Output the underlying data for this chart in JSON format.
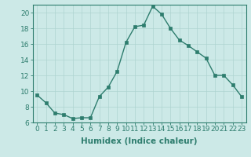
{
  "x": [
    0,
    1,
    2,
    3,
    4,
    5,
    6,
    7,
    8,
    9,
    10,
    11,
    12,
    13,
    14,
    15,
    16,
    17,
    18,
    19,
    20,
    21,
    22,
    23
  ],
  "y": [
    9.5,
    8.5,
    7.2,
    7.0,
    6.5,
    6.6,
    6.6,
    9.3,
    10.5,
    12.5,
    16.2,
    18.2,
    18.4,
    20.8,
    19.8,
    18.0,
    16.5,
    15.8,
    15.0,
    14.2,
    12.0,
    12.0,
    10.8,
    9.3
  ],
  "line_color": "#2e7d6e",
  "marker": "s",
  "marker_size": 2.5,
  "bg_color": "#cce9e7",
  "grid_color": "#aed4d1",
  "xlabel": "Humidex (Indice chaleur)",
  "xlim": [
    -0.5,
    23.5
  ],
  "ylim": [
    6,
    21
  ],
  "yticks": [
    6,
    8,
    10,
    12,
    14,
    16,
    18,
    20
  ],
  "xticks": [
    0,
    1,
    2,
    3,
    4,
    5,
    6,
    7,
    8,
    9,
    10,
    11,
    12,
    13,
    14,
    15,
    16,
    17,
    18,
    19,
    20,
    21,
    22,
    23
  ],
  "xtick_labels": [
    "0",
    "1",
    "2",
    "3",
    "4",
    "5",
    "6",
    "7",
    "8",
    "9",
    "10",
    "11",
    "12",
    "13",
    "14",
    "15",
    "16",
    "17",
    "18",
    "19",
    "20",
    "21",
    "22",
    "23"
  ],
  "tick_fontsize": 6.5,
  "xlabel_fontsize": 7.5,
  "axis_color": "#2e7d6e",
  "tick_color": "#2e7d6e"
}
